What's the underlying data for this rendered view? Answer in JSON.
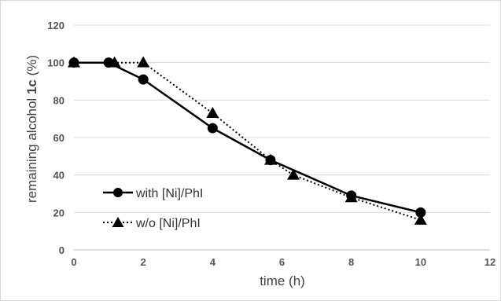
{
  "chart_data": {
    "type": "line",
    "xlabel": "time (h)",
    "ylabel_parts": [
      "remaining alcohol ",
      "1c",
      " (%)"
    ],
    "xlim": [
      0,
      12
    ],
    "ylim": [
      0,
      120
    ],
    "x_ticks": [
      0,
      2,
      4,
      6,
      8,
      10,
      12
    ],
    "y_ticks": [
      0,
      20,
      40,
      60,
      80,
      100,
      120
    ],
    "grid": "horizontal",
    "legend_position": "lower-left",
    "series": [
      {
        "name": "with [Ni]/PhI",
        "marker": "circle",
        "line_style": "solid",
        "color": "#000000",
        "x": [
          0,
          1,
          2,
          4,
          5.67,
          8,
          10
        ],
        "y": [
          100,
          100,
          91,
          65,
          48,
          29,
          20
        ]
      },
      {
        "name": "w/o [Ni]/PhI",
        "marker": "triangle",
        "line_style": "dotted",
        "color": "#000000",
        "x": [
          0,
          1.17,
          2,
          4,
          5.67,
          6.33,
          8,
          10
        ],
        "y": [
          100,
          100,
          100,
          73,
          48,
          40,
          28,
          16
        ]
      }
    ]
  }
}
